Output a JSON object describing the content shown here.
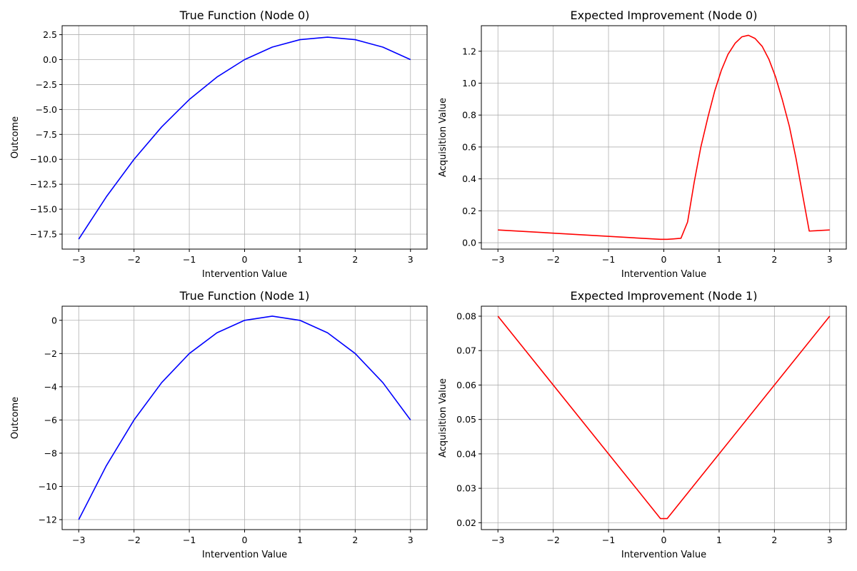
{
  "chart_data": [
    {
      "type": "line",
      "title": "True Function (Node 0)",
      "xlabel": "Intervention Value",
      "ylabel": "Outcome",
      "xlim": [
        -3.3,
        3.3
      ],
      "ylim": [
        -19.0,
        3.4
      ],
      "xticks": [
        -3,
        -2,
        -1,
        0,
        1,
        2,
        3
      ],
      "xtick_labels": [
        "−3",
        "−2",
        "−1",
        "0",
        "1",
        "2",
        "3"
      ],
      "yticks": [
        -17.5,
        -15.0,
        -12.5,
        -10.0,
        -7.5,
        -5.0,
        -2.5,
        0.0,
        2.5
      ],
      "ytick_labels": [
        "−17.5",
        "−15.0",
        "−12.5",
        "−10.0",
        "−7.5",
        "−5.0",
        "−2.5",
        "0.0",
        "2.5"
      ],
      "grid": true,
      "series": [
        {
          "color": "#0000ff",
          "x": [
            -3.0,
            -2.5,
            -2.0,
            -1.5,
            -1.0,
            -0.5,
            0.0,
            0.5,
            1.0,
            1.5,
            2.0,
            2.5,
            3.0
          ],
          "y": [
            -18.0,
            -13.75,
            -10.0,
            -6.75,
            -4.0,
            -1.75,
            0.0,
            1.25,
            2.0,
            2.25,
            2.0,
            1.25,
            0.0
          ]
        }
      ]
    },
    {
      "type": "line",
      "title": "Expected Improvement (Node 0)",
      "xlabel": "Intervention Value",
      "ylabel": "Acquisition Value",
      "xlim": [
        -3.3,
        3.3
      ],
      "ylim": [
        -0.04,
        1.36
      ],
      "xticks": [
        -3,
        -2,
        -1,
        0,
        1,
        2,
        3
      ],
      "xtick_labels": [
        "−3",
        "−2",
        "−1",
        "0",
        "1",
        "2",
        "3"
      ],
      "yticks": [
        0.0,
        0.2,
        0.4,
        0.6,
        0.8,
        1.0,
        1.2
      ],
      "ytick_labels": [
        "0.0",
        "0.2",
        "0.4",
        "0.6",
        "0.8",
        "1.0",
        "1.2"
      ],
      "grid": true,
      "series": [
        {
          "color": "#ff0000",
          "x": [
            -3.0,
            -0.06,
            0.06,
            0.18,
            0.31,
            0.43,
            0.55,
            0.67,
            0.8,
            0.92,
            1.04,
            1.16,
            1.29,
            1.41,
            1.53,
            1.65,
            1.78,
            1.9,
            2.02,
            2.14,
            2.27,
            2.39,
            2.51,
            2.63,
            3.0
          ],
          "y": [
            0.08,
            0.021,
            0.021,
            0.024,
            0.028,
            0.13,
            0.38,
            0.6,
            0.79,
            0.95,
            1.08,
            1.18,
            1.25,
            1.29,
            1.3,
            1.28,
            1.23,
            1.15,
            1.04,
            0.9,
            0.73,
            0.53,
            0.3,
            0.073,
            0.08
          ]
        }
      ]
    },
    {
      "type": "line",
      "title": "True Function (Node 1)",
      "xlabel": "Intervention Value",
      "ylabel": "Outcome",
      "xlim": [
        -3.3,
        3.3
      ],
      "ylim": [
        -12.6,
        0.85
      ],
      "xticks": [
        -3,
        -2,
        -1,
        0,
        1,
        2,
        3
      ],
      "xtick_labels": [
        "−3",
        "−2",
        "−1",
        "0",
        "1",
        "2",
        "3"
      ],
      "yticks": [
        -12,
        -10,
        -8,
        -6,
        -4,
        -2,
        0
      ],
      "ytick_labels": [
        "−12",
        "−10",
        "−8",
        "−6",
        "−4",
        "−2",
        "0"
      ],
      "grid": true,
      "series": [
        {
          "color": "#0000ff",
          "x": [
            -3.0,
            -2.5,
            -2.0,
            -1.5,
            -1.0,
            -0.5,
            0.0,
            0.5,
            1.0,
            1.5,
            2.0,
            2.5,
            3.0
          ],
          "y": [
            -12.0,
            -8.75,
            -6.0,
            -3.75,
            -2.0,
            -0.75,
            0.0,
            0.25,
            0.0,
            -0.75,
            -2.0,
            -3.75,
            -6.0
          ]
        }
      ]
    },
    {
      "type": "line",
      "title": "Expected Improvement (Node 1)",
      "xlabel": "Intervention Value",
      "ylabel": "Acquisition Value",
      "xlim": [
        -3.3,
        3.3
      ],
      "ylim": [
        0.018,
        0.0829
      ],
      "xticks": [
        -3,
        -2,
        -1,
        0,
        1,
        2,
        3
      ],
      "xtick_labels": [
        "−3",
        "−2",
        "−1",
        "0",
        "1",
        "2",
        "3"
      ],
      "yticks": [
        0.02,
        0.03,
        0.04,
        0.05,
        0.06,
        0.07,
        0.08
      ],
      "ytick_labels": [
        "0.02",
        "0.03",
        "0.04",
        "0.05",
        "0.06",
        "0.07",
        "0.08"
      ],
      "grid": true,
      "series": [
        {
          "color": "#ff0000",
          "x": [
            -3.0,
            -0.06,
            0.06,
            3.0
          ],
          "y": [
            0.08,
            0.0212,
            0.0212,
            0.08
          ]
        }
      ]
    }
  ]
}
